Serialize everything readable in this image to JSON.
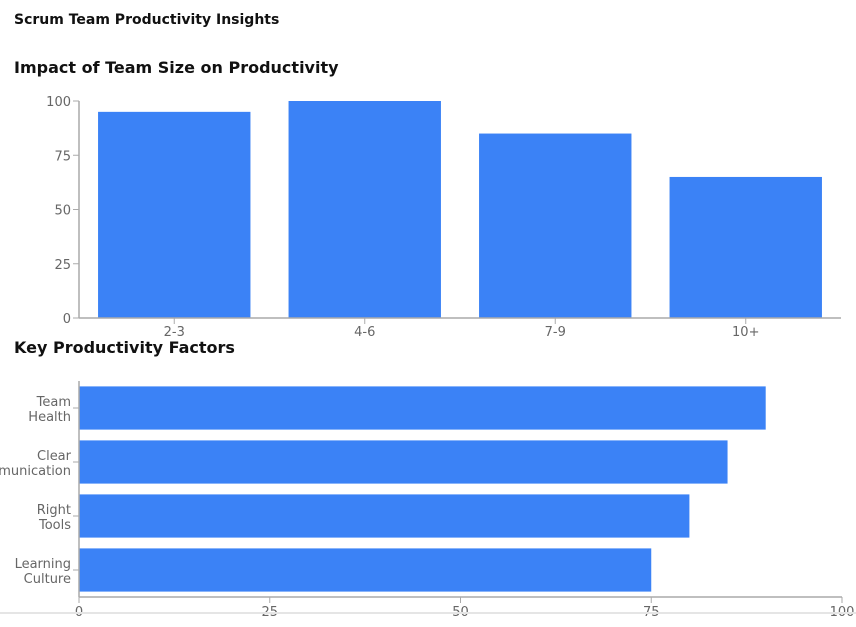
{
  "page": {
    "title": "Scrum Team Productivity Insights"
  },
  "colors": {
    "bar": "#3b82f6",
    "axis": "#aaaaaa",
    "tick_text": "#666666"
  },
  "chart_data": [
    {
      "type": "bar",
      "title": "Impact of Team Size on Productivity",
      "orientation": "vertical",
      "categories": [
        "2-3",
        "4-6",
        "7-9",
        "10+"
      ],
      "values": [
        95,
        100,
        85,
        65
      ],
      "yticks": [
        0,
        25,
        50,
        75,
        100
      ],
      "ylim": [
        0,
        100
      ],
      "grid": false,
      "xlabel": "",
      "ylabel": ""
    },
    {
      "type": "bar",
      "title": "Key Productivity Factors",
      "orientation": "horizontal",
      "categories": [
        "Team Health",
        "Clear Communication",
        "Right Tools",
        "Learning Culture"
      ],
      "values": [
        90,
        85,
        80,
        75
      ],
      "xticks": [
        0,
        25,
        50,
        75,
        100
      ],
      "xlim": [
        0,
        100
      ],
      "grid": false,
      "xlabel": "",
      "ylabel": ""
    }
  ]
}
